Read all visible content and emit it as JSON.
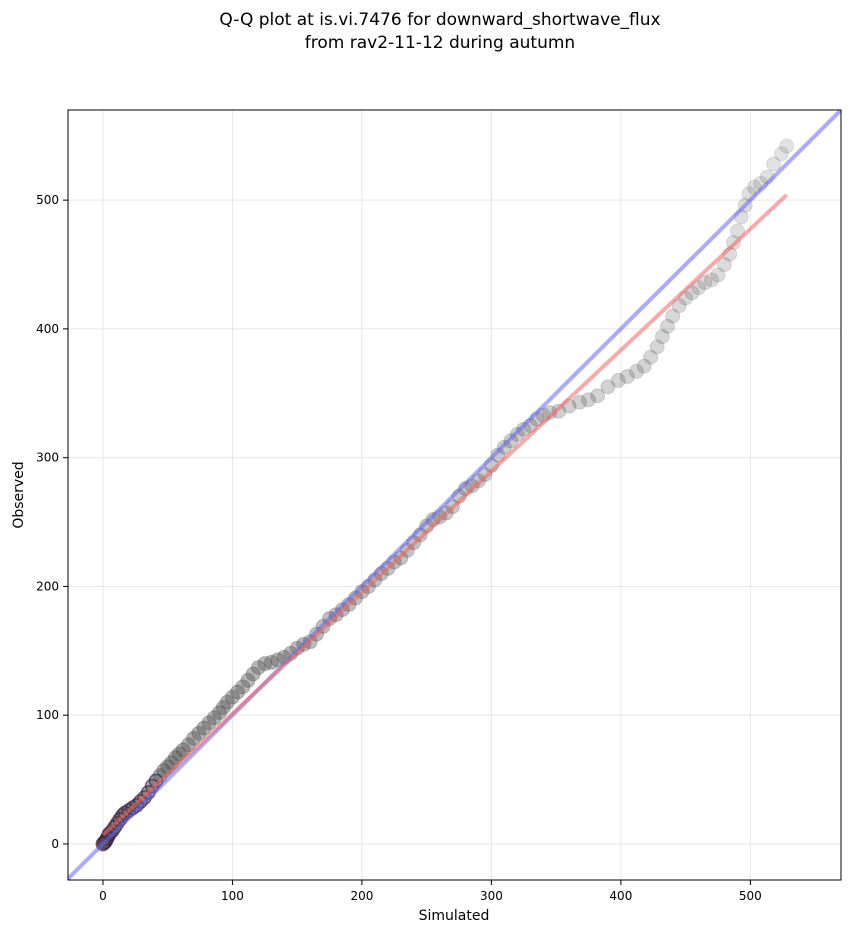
{
  "chart_data": {
    "type": "scatter",
    "title_lines": [
      "Q-Q plot at is.vi.7476 for downward_shortwave_flux",
      "from rav2-11-12 during autumn"
    ],
    "xlabel": "Simulated",
    "ylabel": "Observed",
    "xlim": [
      -27,
      570
    ],
    "ylim": [
      -28,
      570
    ],
    "xticks": [
      0,
      100,
      200,
      300,
      400,
      500
    ],
    "yticks": [
      0,
      100,
      200,
      300,
      400,
      500
    ],
    "grid": true,
    "point_color": "#555555",
    "identity_line": {
      "from": [
        -27,
        -27
      ],
      "to": [
        570,
        570
      ],
      "color": "#6666ee"
    },
    "fit_line": {
      "from": [
        0,
        7
      ],
      "to": [
        528,
        504
      ],
      "color": "#ee6666"
    },
    "quantiles": [
      [
        0,
        0
      ],
      [
        1,
        1
      ],
      [
        2,
        2
      ],
      [
        3,
        4
      ],
      [
        4,
        6
      ],
      [
        5,
        8
      ],
      [
        7,
        10
      ],
      [
        9,
        13
      ],
      [
        11,
        16
      ],
      [
        13,
        19
      ],
      [
        15,
        22
      ],
      [
        17,
        24
      ],
      [
        20,
        26
      ],
      [
        23,
        28
      ],
      [
        26,
        30
      ],
      [
        29,
        33
      ],
      [
        32,
        36
      ],
      [
        35,
        40
      ],
      [
        38,
        45
      ],
      [
        41,
        49
      ],
      [
        44,
        53
      ],
      [
        47,
        57
      ],
      [
        50,
        60
      ],
      [
        53,
        63
      ],
      [
        56,
        67
      ],
      [
        59,
        70
      ],
      [
        62,
        73
      ],
      [
        66,
        77
      ],
      [
        70,
        82
      ],
      [
        74,
        86
      ],
      [
        78,
        90
      ],
      [
        82,
        94
      ],
      [
        86,
        98
      ],
      [
        90,
        102
      ],
      [
        93,
        106
      ],
      [
        96,
        110
      ],
      [
        100,
        114
      ],
      [
        104,
        118
      ],
      [
        108,
        122
      ],
      [
        112,
        127
      ],
      [
        116,
        132
      ],
      [
        120,
        137
      ],
      [
        125,
        140
      ],
      [
        130,
        141
      ],
      [
        135,
        143
      ],
      [
        140,
        145
      ],
      [
        145,
        148
      ],
      [
        150,
        152
      ],
      [
        155,
        155
      ],
      [
        160,
        157
      ],
      [
        165,
        163
      ],
      [
        170,
        169
      ],
      [
        175,
        175
      ],
      [
        180,
        178
      ],
      [
        185,
        182
      ],
      [
        190,
        186
      ],
      [
        195,
        191
      ],
      [
        200,
        196
      ],
      [
        205,
        200
      ],
      [
        210,
        205
      ],
      [
        215,
        210
      ],
      [
        220,
        214
      ],
      [
        225,
        219
      ],
      [
        230,
        222
      ],
      [
        235,
        228
      ],
      [
        240,
        234
      ],
      [
        245,
        240
      ],
      [
        250,
        247
      ],
      [
        255,
        252
      ],
      [
        260,
        254
      ],
      [
        265,
        257
      ],
      [
        270,
        262
      ],
      [
        275,
        270
      ],
      [
        280,
        276
      ],
      [
        285,
        278
      ],
      [
        290,
        282
      ],
      [
        295,
        287
      ],
      [
        300,
        294
      ],
      [
        305,
        302
      ],
      [
        310,
        308
      ],
      [
        315,
        313
      ],
      [
        320,
        318
      ],
      [
        325,
        322
      ],
      [
        330,
        325
      ],
      [
        335,
        330
      ],
      [
        340,
        333
      ],
      [
        345,
        335
      ],
      [
        352,
        336
      ],
      [
        360,
        340
      ],
      [
        368,
        343
      ],
      [
        375,
        345
      ],
      [
        382,
        348
      ],
      [
        390,
        355
      ],
      [
        398,
        360
      ],
      [
        405,
        363
      ],
      [
        412,
        367
      ],
      [
        418,
        371
      ],
      [
        423,
        378
      ],
      [
        428,
        386
      ],
      [
        432,
        394
      ],
      [
        436,
        402
      ],
      [
        440,
        410
      ],
      [
        445,
        418
      ],
      [
        450,
        424
      ],
      [
        455,
        428
      ],
      [
        460,
        432
      ],
      [
        465,
        436
      ],
      [
        470,
        438
      ],
      [
        475,
        442
      ],
      [
        480,
        450
      ],
      [
        484,
        458
      ],
      [
        487,
        467
      ],
      [
        490,
        476
      ],
      [
        493,
        487
      ],
      [
        496,
        496
      ],
      [
        499,
        505
      ],
      [
        503,
        510
      ],
      [
        508,
        513
      ],
      [
        513,
        518
      ],
      [
        518,
        528
      ],
      [
        524,
        536
      ],
      [
        528,
        542
      ]
    ]
  }
}
